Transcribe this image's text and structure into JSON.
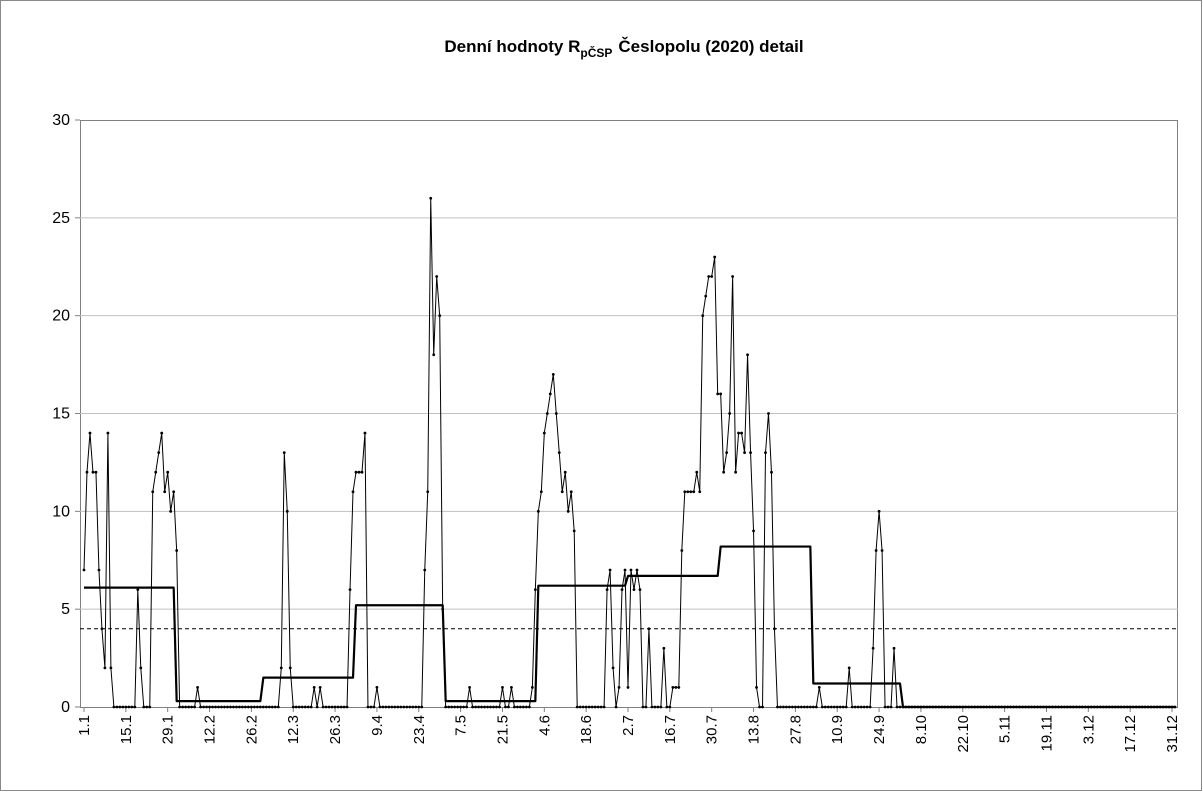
{
  "chart_data": {
    "type": "line",
    "title": "Denní hodnoty R",
    "title_subscript": "pČSP",
    "title_rest": "Česlopolu (2020) detail",
    "categories": [
      "1.1",
      null,
      null,
      null,
      null,
      null,
      null,
      null,
      null,
      null,
      null,
      null,
      null,
      null,
      "15.1",
      null,
      null,
      null,
      null,
      null,
      null,
      null,
      null,
      null,
      null,
      null,
      null,
      null,
      "29.1",
      null,
      null,
      null,
      null,
      null,
      null,
      null,
      null,
      null,
      null,
      null,
      null,
      null,
      "12.2",
      null,
      null,
      null,
      null,
      null,
      null,
      null,
      null,
      null,
      null,
      null,
      null,
      null,
      "26.2",
      null,
      null,
      null,
      null,
      null,
      null,
      null,
      null,
      null,
      null,
      null,
      null,
      null,
      "12.3",
      null,
      null,
      null,
      null,
      null,
      null,
      null,
      null,
      null,
      null,
      null,
      null,
      null,
      "26.3",
      null,
      null,
      null,
      null,
      null,
      null,
      null,
      null,
      null,
      null,
      null,
      null,
      null,
      "9.4",
      null,
      null,
      null,
      null,
      null,
      null,
      null,
      null,
      null,
      null,
      null,
      null,
      null,
      "23.4",
      null,
      null,
      null,
      null,
      null,
      null,
      null,
      null,
      null,
      null,
      null,
      null,
      null,
      "7.5",
      null,
      null,
      null,
      null,
      null,
      null,
      null,
      null,
      null,
      null,
      null,
      null,
      null,
      "21.5",
      null,
      null,
      null,
      null,
      null,
      null,
      null,
      null,
      null,
      null,
      null,
      null,
      null,
      "4.6",
      null,
      null,
      null,
      null,
      null,
      null,
      null,
      null,
      null,
      null,
      null,
      null,
      null,
      "18.6",
      null,
      null,
      null,
      null,
      null,
      null,
      null,
      null,
      null,
      null,
      null,
      null,
      null,
      "2.7",
      null,
      null,
      null,
      null,
      null,
      null,
      null,
      null,
      null,
      null,
      null,
      null,
      null,
      "16.7",
      null,
      null,
      null,
      null,
      null,
      null,
      null,
      null,
      null,
      null,
      null,
      null,
      null,
      "30.7",
      null,
      null,
      null,
      null,
      null,
      null,
      null,
      null,
      null,
      null,
      null,
      null,
      null,
      "13.8",
      null,
      null,
      null,
      null,
      null,
      null,
      null,
      null,
      null,
      null,
      null,
      null,
      null,
      "27.8",
      null,
      null,
      null,
      null,
      null,
      null,
      null,
      null,
      null,
      null,
      null,
      null,
      null,
      "10.9",
      null,
      null,
      null,
      null,
      null,
      null,
      null,
      null,
      null,
      null,
      null,
      null,
      null,
      "24.9",
      null,
      null,
      null,
      null,
      null,
      null,
      null,
      null,
      null,
      null,
      null,
      null,
      null,
      "8.10",
      null,
      null,
      null,
      null,
      null,
      null,
      null,
      null,
      null,
      null,
      null,
      null,
      null,
      "22.10",
      null,
      null,
      null,
      null,
      null,
      null,
      null,
      null,
      null,
      null,
      null,
      null,
      null,
      "5.11",
      null,
      null,
      null,
      null,
      null,
      null,
      null,
      null,
      null,
      null,
      null,
      null,
      null,
      "19.11",
      null,
      null,
      null,
      null,
      null,
      null,
      null,
      null,
      null,
      null,
      null,
      null,
      null,
      "3.12",
      null,
      null,
      null,
      null,
      null,
      null,
      null,
      null,
      null,
      null,
      null,
      null,
      null,
      "17.12",
      null,
      null,
      null,
      null,
      null,
      null,
      null,
      null,
      null,
      null,
      null,
      null,
      null,
      "31.12",
      null
    ],
    "series": [
      {
        "color": "#000000",
        "markers": true,
        "width": 1,
        "values": [
          7,
          12,
          14,
          12,
          12,
          7,
          4,
          2,
          14,
          2,
          0,
          0,
          0,
          0,
          0,
          0,
          0,
          0,
          6,
          2,
          0,
          0,
          0,
          11,
          12,
          13,
          14,
          11,
          12,
          10,
          11,
          8,
          0,
          0,
          0,
          0,
          0,
          0,
          1,
          0,
          0,
          0,
          0,
          0,
          0,
          0,
          0,
          0,
          0,
          0,
          0,
          0,
          0,
          0,
          0,
          0,
          0,
          0,
          0,
          0,
          0,
          0,
          0,
          0,
          0,
          0,
          2,
          13,
          10,
          2,
          0,
          0,
          0,
          0,
          0,
          0,
          0,
          1,
          0,
          1,
          0,
          0,
          0,
          0,
          0,
          0,
          0,
          0,
          0,
          6,
          11,
          12,
          12,
          12,
          14,
          0,
          0,
          0,
          1,
          0,
          0,
          0,
          0,
          0,
          0,
          0,
          0,
          0,
          0,
          0,
          0,
          0,
          0,
          0,
          7,
          11,
          26,
          18,
          22,
          20,
          5,
          0,
          0,
          0,
          0,
          0,
          0,
          0,
          0,
          1,
          0,
          0,
          0,
          0,
          0,
          0,
          0,
          0,
          0,
          0,
          1,
          0,
          0,
          1,
          0,
          0,
          0,
          0,
          0,
          0,
          1,
          6,
          10,
          11,
          14,
          15,
          16,
          17,
          15,
          13,
          11,
          12,
          10,
          11,
          9,
          0,
          0,
          0,
          0,
          0,
          0,
          0,
          0,
          0,
          0,
          6,
          7,
          2,
          0,
          1,
          6,
          7,
          1,
          7,
          6,
          7,
          6,
          0,
          0,
          4,
          0,
          0,
          0,
          0,
          3,
          0,
          0,
          1,
          1,
          1,
          8,
          11,
          11,
          11,
          11,
          12,
          11,
          20,
          21,
          22,
          22,
          23,
          16,
          16,
          12,
          13,
          15,
          22,
          12,
          14,
          14,
          13,
          18,
          13,
          9,
          1,
          0,
          0,
          13,
          15,
          12,
          4,
          0,
          0,
          0,
          0,
          0,
          0,
          0,
          0,
          0,
          0,
          0,
          0,
          0,
          0,
          1,
          0,
          0,
          0,
          0,
          0,
          0,
          0,
          0,
          0,
          2,
          0,
          0,
          0,
          0,
          0,
          0,
          0,
          3,
          8,
          10,
          8,
          0,
          0,
          0,
          3,
          0,
          0,
          0,
          0,
          0,
          0,
          0,
          0,
          0,
          0,
          0,
          0,
          0,
          0,
          0,
          0,
          0,
          0,
          0,
          0,
          0,
          0,
          0,
          0,
          0,
          0,
          0,
          0,
          0,
          0,
          0,
          0,
          0,
          0,
          0,
          0,
          0,
          0,
          0,
          0,
          0,
          0,
          0,
          0,
          0,
          0,
          0,
          0,
          0,
          0,
          0,
          0,
          0,
          0,
          0,
          0,
          0,
          0,
          0,
          0,
          0,
          0,
          0,
          0,
          0,
          0,
          0,
          0,
          0,
          0,
          0,
          0,
          0,
          0,
          0,
          0,
          0,
          0,
          0,
          0,
          0,
          0,
          0,
          0,
          0,
          0,
          0,
          0,
          0,
          0,
          0,
          0,
          0,
          0
        ]
      },
      {
        "color": "#000000",
        "markers": false,
        "width": 2.2,
        "values": [
          6.1,
          6.1,
          6.1,
          6.1,
          6.1,
          6.1,
          6.1,
          6.1,
          6.1,
          6.1,
          6.1,
          6.1,
          6.1,
          6.1,
          6.1,
          6.1,
          6.1,
          6.1,
          6.1,
          6.1,
          6.1,
          6.1,
          6.1,
          6.1,
          6.1,
          6.1,
          6.1,
          6.1,
          6.1,
          6.1,
          6.1,
          0.3,
          0.3,
          0.3,
          0.3,
          0.3,
          0.3,
          0.3,
          0.3,
          0.3,
          0.3,
          0.3,
          0.3,
          0.3,
          0.3,
          0.3,
          0.3,
          0.3,
          0.3,
          0.3,
          0.3,
          0.3,
          0.3,
          0.3,
          0.3,
          0.3,
          0.3,
          0.3,
          0.3,
          0.3,
          1.5,
          1.5,
          1.5,
          1.5,
          1.5,
          1.5,
          1.5,
          1.5,
          1.5,
          1.5,
          1.5,
          1.5,
          1.5,
          1.5,
          1.5,
          1.5,
          1.5,
          1.5,
          1.5,
          1.5,
          1.5,
          1.5,
          1.5,
          1.5,
          1.5,
          1.5,
          1.5,
          1.5,
          1.5,
          1.5,
          1.5,
          5.2,
          5.2,
          5.2,
          5.2,
          5.2,
          5.2,
          5.2,
          5.2,
          5.2,
          5.2,
          5.2,
          5.2,
          5.2,
          5.2,
          5.2,
          5.2,
          5.2,
          5.2,
          5.2,
          5.2,
          5.2,
          5.2,
          5.2,
          5.2,
          5.2,
          5.2,
          5.2,
          5.2,
          5.2,
          5.2,
          0.3,
          0.3,
          0.3,
          0.3,
          0.3,
          0.3,
          0.3,
          0.3,
          0.3,
          0.3,
          0.3,
          0.3,
          0.3,
          0.3,
          0.3,
          0.3,
          0.3,
          0.3,
          0.3,
          0.3,
          0.3,
          0.3,
          0.3,
          0.3,
          0.3,
          0.3,
          0.3,
          0.3,
          0.3,
          0.3,
          0.3,
          6.2,
          6.2,
          6.2,
          6.2,
          6.2,
          6.2,
          6.2,
          6.2,
          6.2,
          6.2,
          6.2,
          6.2,
          6.2,
          6.2,
          6.2,
          6.2,
          6.2,
          6.2,
          6.2,
          6.2,
          6.2,
          6.2,
          6.2,
          6.2,
          6.2,
          6.2,
          6.2,
          6.2,
          6.2,
          6.2,
          6.7,
          6.7,
          6.7,
          6.7,
          6.7,
          6.7,
          6.7,
          6.7,
          6.7,
          6.7,
          6.7,
          6.7,
          6.7,
          6.7,
          6.7,
          6.7,
          6.7,
          6.7,
          6.7,
          6.7,
          6.7,
          6.7,
          6.7,
          6.7,
          6.7,
          6.7,
          6.7,
          6.7,
          6.7,
          6.7,
          6.7,
          8.2,
          8.2,
          8.2,
          8.2,
          8.2,
          8.2,
          8.2,
          8.2,
          8.2,
          8.2,
          8.2,
          8.2,
          8.2,
          8.2,
          8.2,
          8.2,
          8.2,
          8.2,
          8.2,
          8.2,
          8.2,
          8.2,
          8.2,
          8.2,
          8.2,
          8.2,
          8.2,
          8.2,
          8.2,
          8.2,
          8.2,
          1.2,
          1.2,
          1.2,
          1.2,
          1.2,
          1.2,
          1.2,
          1.2,
          1.2,
          1.2,
          1.2,
          1.2,
          1.2,
          1.2,
          1.2,
          1.2,
          1.2,
          1.2,
          1.2,
          1.2,
          1.2,
          1.2,
          1.2,
          1.2,
          1.2,
          1.2,
          1.2,
          1.2,
          1.2,
          1.2,
          0,
          0,
          0,
          0,
          0,
          0,
          0,
          0,
          0,
          0,
          0,
          0,
          0,
          0,
          0,
          0,
          0,
          0,
          0,
          0,
          0,
          0,
          0,
          0,
          0,
          0,
          0,
          0,
          0,
          0,
          0,
          0,
          0,
          0,
          0,
          0,
          0,
          0,
          0,
          0,
          0,
          0,
          0,
          0,
          0,
          0,
          0,
          0,
          0,
          0,
          0,
          0,
          0,
          0,
          0,
          0,
          0,
          0,
          0,
          0,
          0,
          0,
          0,
          0,
          0,
          0,
          0,
          0,
          0,
          0,
          0,
          0,
          0,
          0,
          0,
          0,
          0,
          0,
          0,
          0,
          0,
          0,
          0,
          0,
          0,
          0,
          0,
          0,
          0,
          0,
          0,
          0
        ]
      }
    ],
    "threshold": 4,
    "ylim": [
      0,
      30
    ],
    "yticks": [
      0,
      5,
      10,
      15,
      20,
      25,
      30
    ],
    "grid": true
  }
}
